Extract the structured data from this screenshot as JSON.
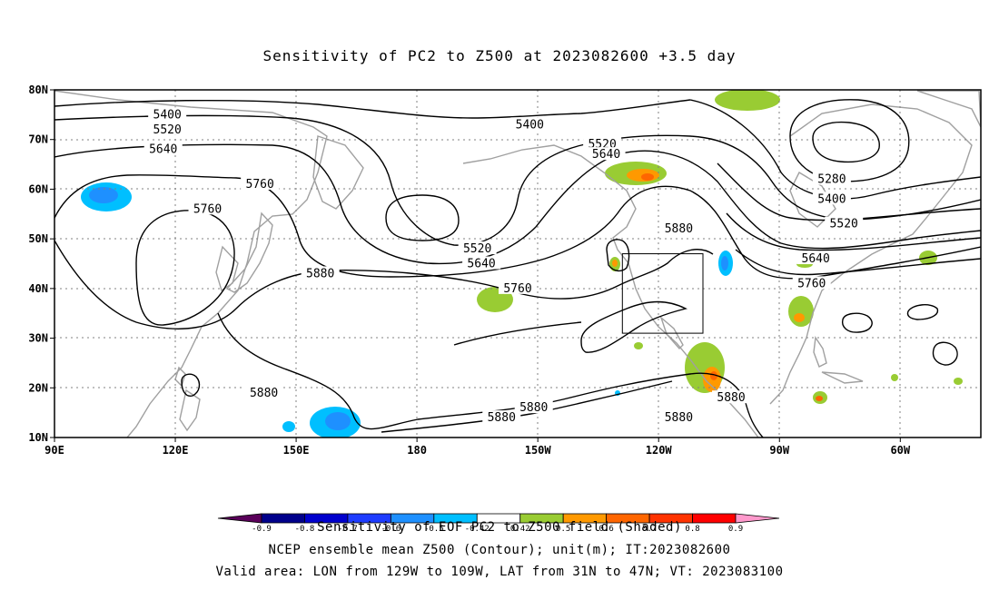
{
  "title": "Sensitivity of PC2 to Z500 at 2023082600 +3.5 day",
  "colors": {
    "contour": "#000000",
    "coast": "#a0a0a0",
    "grid": "#808080",
    "neg_strong": "#1e90ff",
    "neg_weak": "#00bfff",
    "pos_weak": "#99cc33",
    "pos_mid": "#ff9900",
    "pos_strong": "#ff6600"
  },
  "map": {
    "lon_ticks": [
      {
        "lon": 90,
        "label": "90E"
      },
      {
        "lon": 120,
        "label": "120E"
      },
      {
        "lon": 150,
        "label": "150E"
      },
      {
        "lon": 180,
        "label": "180"
      },
      {
        "lon": 210,
        "label": "150W"
      },
      {
        "lon": 240,
        "label": "120W"
      },
      {
        "lon": 270,
        "label": "90W"
      },
      {
        "lon": 300,
        "label": "60W"
      }
    ],
    "lat_ticks": [
      {
        "lat": 80,
        "label": "80N"
      },
      {
        "lat": 70,
        "label": "70N"
      },
      {
        "lat": 60,
        "label": "60N"
      },
      {
        "lat": 50,
        "label": "50N"
      },
      {
        "lat": 40,
        "label": "40N"
      },
      {
        "lat": 30,
        "label": "30N"
      },
      {
        "lat": 20,
        "label": "20N"
      },
      {
        "lat": 10,
        "label": "10N"
      }
    ],
    "contour_labels": [
      {
        "text": "5400",
        "lon": 118,
        "lat": 75
      },
      {
        "text": "5520",
        "lon": 118,
        "lat": 72
      },
      {
        "text": "5640",
        "lon": 117,
        "lat": 68
      },
      {
        "text": "5760",
        "lon": 141,
        "lat": 61
      },
      {
        "text": "5760",
        "lon": 128,
        "lat": 56
      },
      {
        "text": "5400",
        "lon": 208,
        "lat": 73
      },
      {
        "text": "5520",
        "lon": 226,
        "lat": 69
      },
      {
        "text": "5640",
        "lon": 227,
        "lat": 67
      },
      {
        "text": "5280",
        "lon": 283,
        "lat": 62
      },
      {
        "text": "5400",
        "lon": 283,
        "lat": 58
      },
      {
        "text": "5520",
        "lon": 286,
        "lat": 53
      },
      {
        "text": "5640",
        "lon": 279,
        "lat": 46
      },
      {
        "text": "5760",
        "lon": 278,
        "lat": 41
      },
      {
        "text": "5520",
        "lon": 195,
        "lat": 48
      },
      {
        "text": "5640",
        "lon": 196,
        "lat": 45
      },
      {
        "text": "5880",
        "lon": 156,
        "lat": 43
      },
      {
        "text": "5760",
        "lon": 205,
        "lat": 40
      },
      {
        "text": "5880",
        "lon": 245,
        "lat": 52
      },
      {
        "text": "5880",
        "lon": 142,
        "lat": 19
      },
      {
        "text": "5880",
        "lon": 258,
        "lat": 18
      },
      {
        "text": "5880",
        "lon": 209,
        "lat": 16
      },
      {
        "text": "5880",
        "lon": 201,
        "lat": 14
      },
      {
        "text": "5880",
        "lon": 245,
        "lat": 14
      }
    ],
    "valid_box": {
      "lon_w": 231,
      "lon_e": 251,
      "lat_s": 31,
      "lat_n": 47
    }
  },
  "colorbar": {
    "labels": [
      "-0.9",
      "-0.8",
      "-0.7",
      "-0.6",
      "-0.5",
      "-0.42",
      "0.42",
      "0.5",
      "0.6",
      "0.7",
      "0.8",
      "0.9"
    ],
    "colors": [
      "#5a005a",
      "#00008b",
      "#0000cd",
      "#1e3cff",
      "#1e90ff",
      "#00bfff",
      "#ffffff",
      "#99cc33",
      "#ff9900",
      "#ff6600",
      "#ff3300",
      "#ff0000",
      "#ff99cc"
    ]
  },
  "captions": {
    "line1": "Sensitivity of EOF PC2 to Z500 field (Shaded)",
    "line2": "NCEP ensemble mean Z500 (Contour); unit(m); IT:2023082600",
    "line3": "Valid area: LON from 129W to 109W, LAT from 31N to 47N; VT: 2023083100"
  }
}
